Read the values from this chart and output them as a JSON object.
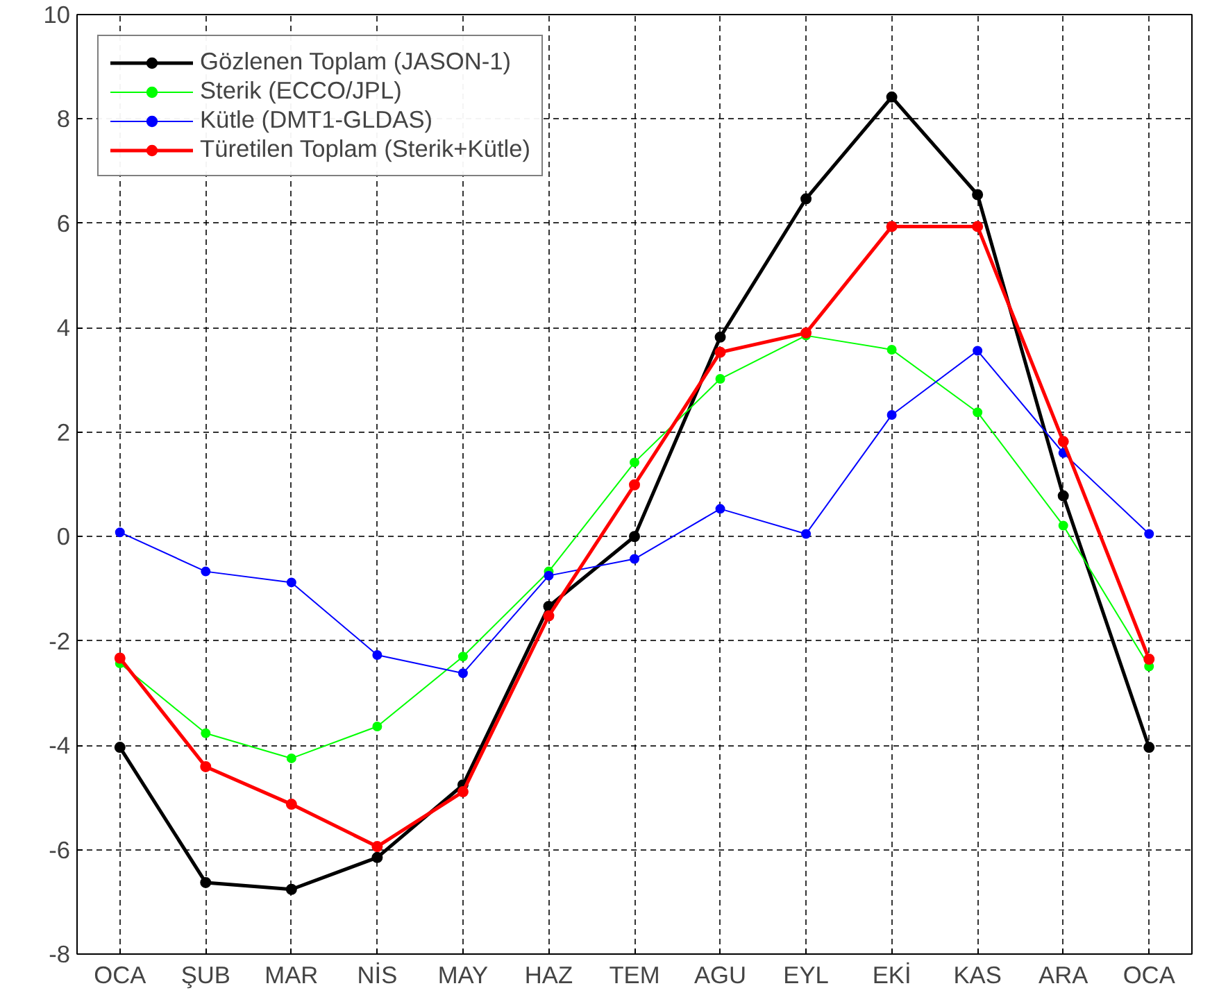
{
  "chart_data": {
    "type": "line",
    "categories": [
      "OCA",
      "ŞUB",
      "MAR",
      "NİS",
      "MAY",
      "HAZ",
      "TEM",
      "AGU",
      "EYL",
      "EKİ",
      "KAS",
      "ARA",
      "OCA"
    ],
    "ylim": [
      -8,
      10
    ],
    "yticks": [
      -8,
      -6,
      -4,
      -2,
      0,
      2,
      4,
      6,
      8,
      10
    ],
    "grid": true,
    "legend": "top left",
    "marker": "circle",
    "line_style": "solid",
    "series": [
      {
        "name": "Gözlenen Toplam (JASON-1)",
        "color": "#000000",
        "values": [
          -4.04,
          -6.63,
          -6.76,
          -6.15,
          -4.76,
          -1.34,
          0,
          3.82,
          6.47,
          8.42,
          6.55,
          0.78,
          -4.04
        ]
      },
      {
        "name": "Sterik (ECCO/JPL)",
        "color": "#00ff00",
        "values": [
          -2.43,
          -3.77,
          -4.25,
          -3.64,
          -2.3,
          -0.67,
          1.42,
          3.02,
          3.85,
          3.58,
          2.38,
          0.21,
          -2.49
        ]
      },
      {
        "name": "Kütle (DMT1-GLDAS)",
        "color": "#0000ff",
        "values": [
          0.08,
          -0.67,
          -0.88,
          -2.27,
          -2.62,
          -0.75,
          -0.43,
          0.53,
          0.05,
          2.33,
          3.56,
          1.6,
          0.05
        ]
      },
      {
        "name": "Türetilen Toplam (Sterik+Kütle)",
        "color": "#ff0000",
        "values": [
          -2.33,
          -4.41,
          -5.13,
          -5.94,
          -4.89,
          -1.52,
          0.99,
          3.53,
          3.9,
          5.94,
          5.94,
          1.82,
          -2.35
        ]
      }
    ]
  }
}
